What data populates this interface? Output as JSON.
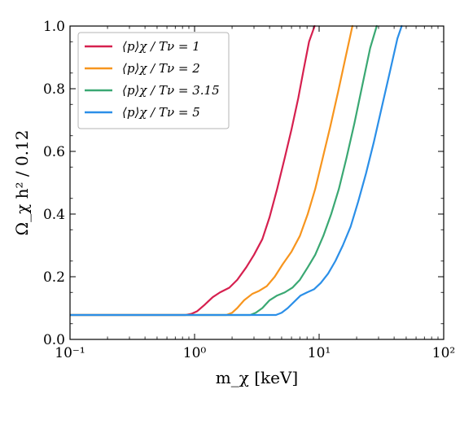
{
  "chart_data": {
    "type": "line",
    "title": "",
    "xlabel": "m_χ  [keV]",
    "ylabel": "Ω_χ h² / 0.12",
    "xscale": "log",
    "xlim": [
      0.1,
      100
    ],
    "ylim": [
      0.0,
      1.0
    ],
    "x_ticks": [
      0.1,
      1,
      10,
      100
    ],
    "x_tick_labels": [
      "10⁻¹",
      "10⁰",
      "10¹",
      "10²"
    ],
    "y_ticks": [
      0.0,
      0.2,
      0.4,
      0.6,
      0.8,
      1.0
    ],
    "y_tick_labels": [
      "0.0",
      "0.2",
      "0.4",
      "0.6",
      "0.8",
      "1.0"
    ],
    "grid": false,
    "legend_position": "top-left",
    "series": [
      {
        "name": "⟨p⟩χ / Tν = 1",
        "color": "#d6204f",
        "x": [
          0.1,
          0.5,
          0.85,
          0.95,
          1.05,
          1.2,
          1.4,
          1.6,
          1.9,
          2.2,
          2.6,
          3.0,
          3.5,
          4.0,
          4.6,
          5.3,
          6.0,
          6.8,
          7.5,
          8.3,
          9.2
        ],
        "y": [
          0.078,
          0.078,
          0.078,
          0.082,
          0.09,
          0.11,
          0.135,
          0.15,
          0.165,
          0.19,
          0.23,
          0.27,
          0.32,
          0.39,
          0.48,
          0.58,
          0.67,
          0.77,
          0.86,
          0.95,
          1.0
        ]
      },
      {
        "name": "⟨p⟩χ / Tν = 2",
        "color": "#f7951e",
        "x": [
          0.1,
          1.0,
          1.8,
          2.0,
          2.2,
          2.5,
          2.9,
          3.3,
          3.8,
          4.4,
          5.1,
          6.0,
          7.0,
          8.1,
          9.3,
          10.7,
          12.3,
          14.2,
          16.3,
          18.5
        ],
        "y": [
          0.078,
          0.078,
          0.078,
          0.085,
          0.1,
          0.125,
          0.145,
          0.155,
          0.17,
          0.2,
          0.24,
          0.28,
          0.33,
          0.4,
          0.48,
          0.58,
          0.68,
          0.79,
          0.9,
          1.0
        ]
      },
      {
        "name": "⟨p⟩χ / Tν = 3.15",
        "color": "#3aa873",
        "x": [
          0.1,
          1.0,
          2.8,
          3.1,
          3.5,
          4.0,
          4.6,
          5.3,
          6.1,
          7.0,
          8.1,
          9.3,
          10.8,
          12.5,
          14.4,
          16.6,
          19.2,
          22.2,
          25.7,
          29.0
        ],
        "y": [
          0.078,
          0.078,
          0.078,
          0.085,
          0.1,
          0.125,
          0.14,
          0.15,
          0.165,
          0.19,
          0.23,
          0.27,
          0.33,
          0.4,
          0.48,
          0.58,
          0.69,
          0.81,
          0.93,
          1.0
        ]
      },
      {
        "name": "⟨p⟩χ / Tν = 5",
        "color": "#2b8fe8",
        "x": [
          0.1,
          1.0,
          4.5,
          5.0,
          5.6,
          6.3,
          7.1,
          8.0,
          9.1,
          10.3,
          11.8,
          13.5,
          15.5,
          17.9,
          20.6,
          23.8,
          27.5,
          31.8,
          36.8,
          42.5,
          46.0
        ],
        "y": [
          0.078,
          0.078,
          0.078,
          0.085,
          0.1,
          0.12,
          0.14,
          0.15,
          0.16,
          0.18,
          0.21,
          0.25,
          0.3,
          0.36,
          0.44,
          0.53,
          0.63,
          0.74,
          0.85,
          0.96,
          1.0
        ]
      }
    ]
  }
}
